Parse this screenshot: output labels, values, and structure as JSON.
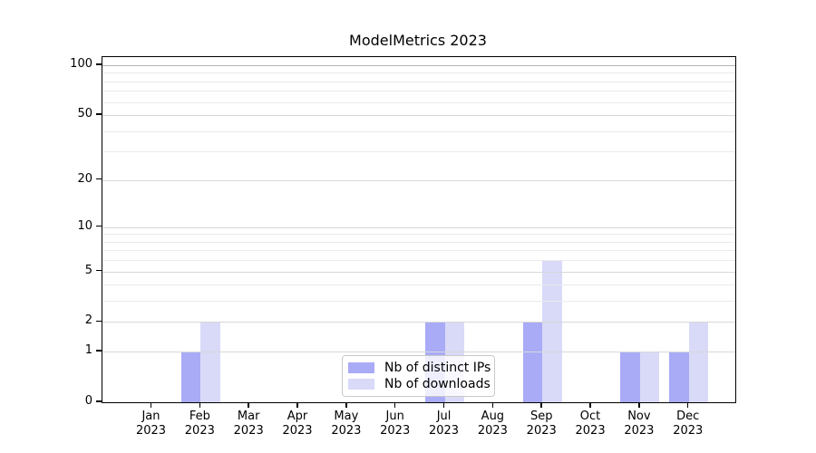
{
  "figure": {
    "background": "#ffffff"
  },
  "chart_data": {
    "type": "bar",
    "title": "ModelMetrics 2023",
    "categories": [
      "Jan",
      "Feb",
      "Mar",
      "Apr",
      "May",
      "Jun",
      "Jul",
      "Aug",
      "Sep",
      "Oct",
      "Nov",
      "Dec"
    ],
    "x_year": "2023",
    "series": [
      {
        "name": "Nb of distinct IPs",
        "color": "#a9abf7",
        "values": [
          0,
          1,
          0,
          0,
          0,
          0,
          2,
          0,
          2,
          0,
          1,
          1
        ]
      },
      {
        "name": "Nb of downloads",
        "color": "#d9daf8",
        "values": [
          0,
          2,
          0,
          0,
          0,
          0,
          2,
          0,
          6,
          0,
          1,
          2
        ]
      }
    ],
    "yscale": "log1p",
    "ylim": [
      0,
      113
    ],
    "yticks_major": [
      0,
      1,
      2,
      5,
      10,
      20,
      50,
      100
    ],
    "yticks_minor": [
      3,
      4,
      6,
      7,
      8,
      9,
      30,
      40,
      60,
      70,
      80,
      90
    ],
    "grid": {
      "major_color": "#d7d7d7",
      "minor_color": "#eaeaea",
      "top_color": "#b3b3b3"
    },
    "legend_position": "lower center inside",
    "legend_labels": [
      "Nb of distinct IPs",
      "Nb of downloads"
    ]
  }
}
